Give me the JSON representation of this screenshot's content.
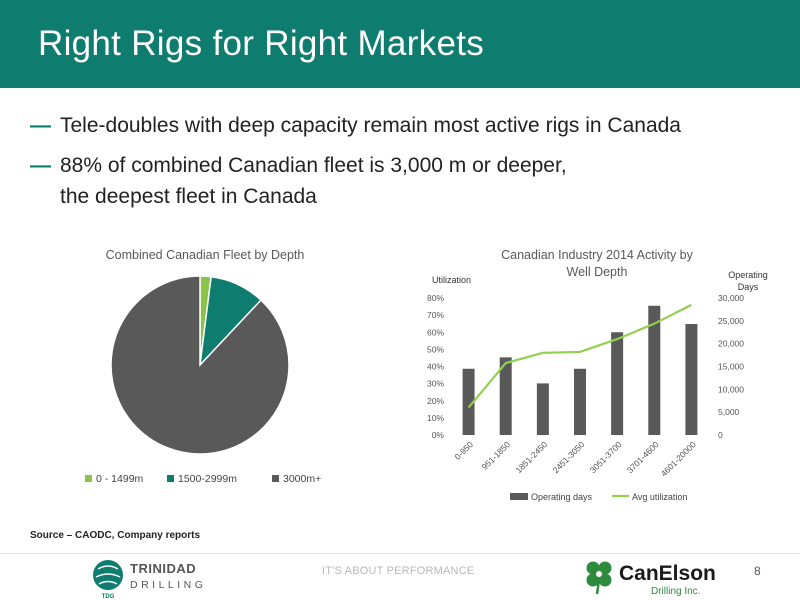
{
  "slide": {
    "title": "Right Rigs for Right Markets",
    "bullets": [
      {
        "line1": "Tele-doubles with deep capacity remain most active rigs in Canada"
      },
      {
        "line1": "88% of combined Canadian fleet is 3,000 m or deeper,",
        "line2": "the deepest fleet in Canada"
      }
    ],
    "source": "Source – CAODC, Company reports",
    "tagline": "IT'S ABOUT PERFORMANCE",
    "page_number": "8"
  },
  "logos": {
    "trinidad": {
      "line1": "TRINIDAD",
      "line2": "DRILLING",
      "mark": "TDG"
    },
    "canelson": {
      "name": "CanElson",
      "sub": "Drilling Inc."
    }
  },
  "colors": {
    "header": "#0e7c6e",
    "pie_small": "#8bc34a",
    "pie_mid": "#0e7c6e",
    "pie_large": "#595959",
    "bar": "#595959",
    "line": "#92d050"
  },
  "chart_data": [
    {
      "type": "pie",
      "title": "Combined Canadian Fleet by Depth",
      "categories": [
        "0 - 1499m",
        "1500-2999m",
        "3000m+"
      ],
      "values": [
        2,
        10,
        88
      ],
      "legend": "bottom"
    },
    {
      "type": "bar",
      "title": "Canadian Industry 2014 Activity by Well Depth",
      "categories": [
        "0-950",
        "951-1850",
        "1851-2450",
        "2451-3050",
        "3051-3700",
        "3701-4600",
        "4601-20000"
      ],
      "series": [
        {
          "name": "Operating days",
          "type": "bar",
          "axis": "right",
          "values": [
            14500,
            17000,
            11300,
            14500,
            22500,
            28300,
            24300
          ]
        },
        {
          "name": "Avg utilization",
          "type": "line",
          "axis": "left",
          "values": [
            0.16,
            0.42,
            0.48,
            0.485,
            0.56,
            0.65,
            0.76
          ]
        }
      ],
      "y_left": {
        "label": "Utilization",
        "min": 0,
        "max": 0.8,
        "ticks": [
          "0%",
          "10%",
          "20%",
          "30%",
          "40%",
          "50%",
          "60%",
          "70%",
          "80%"
        ]
      },
      "y_right": {
        "label_line1": "Operating",
        "label_line2": "Days",
        "min": 0,
        "max": 30000,
        "ticks": [
          "0",
          "5,000",
          "10,000",
          "15,000",
          "20,000",
          "25,000",
          "30,000"
        ]
      },
      "legend": "bottom"
    }
  ]
}
